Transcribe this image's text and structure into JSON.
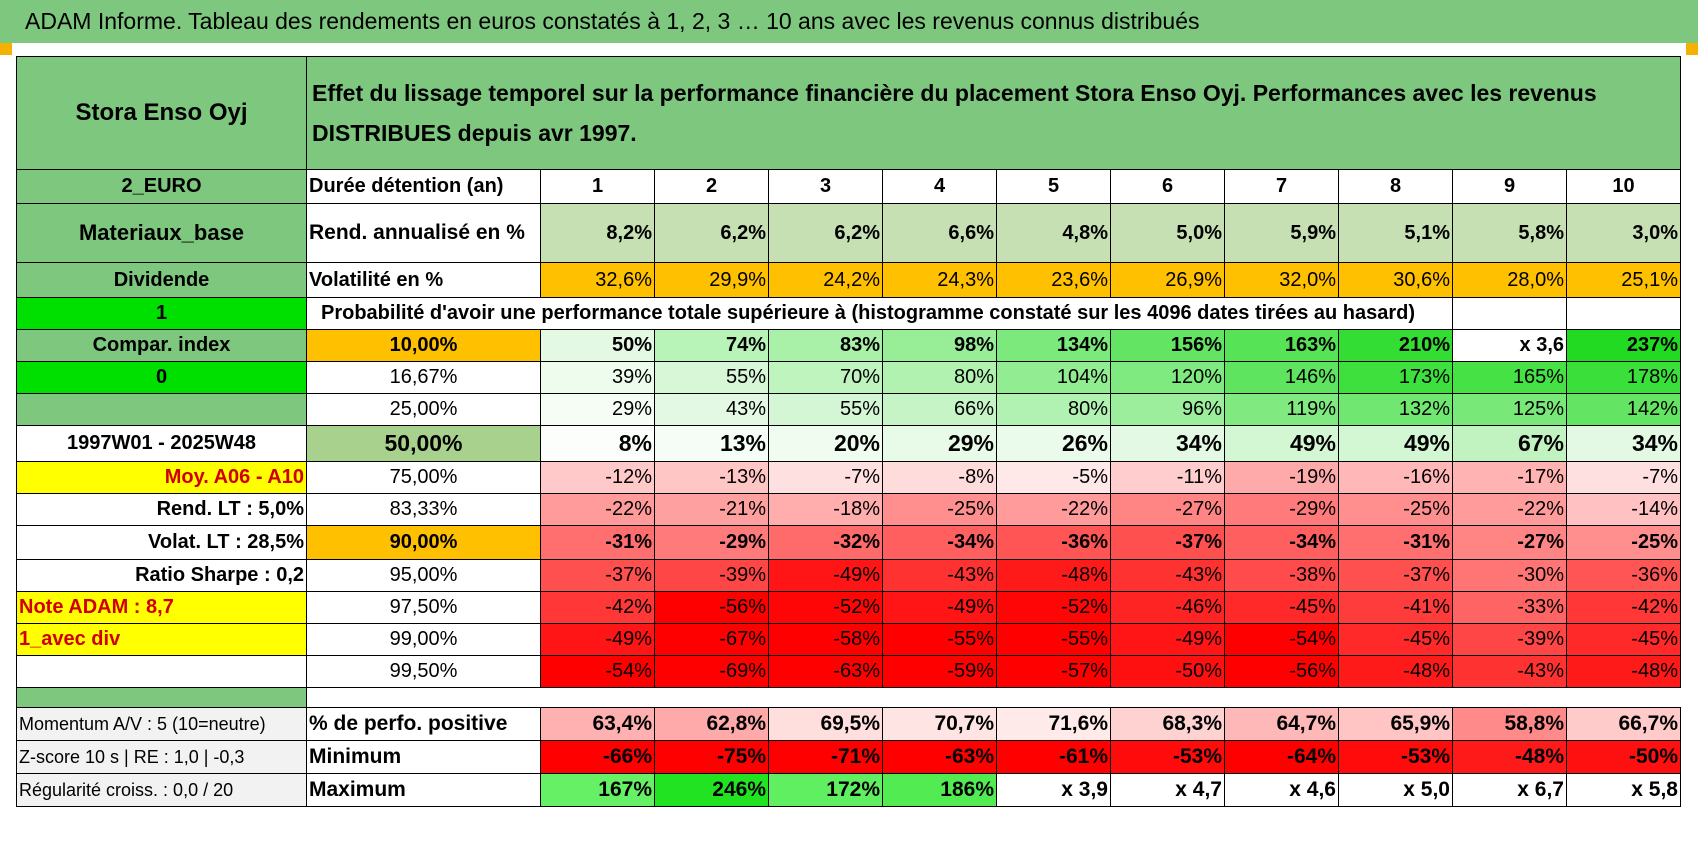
{
  "title": "ADAM Informe. Tableau des rendements en euros constatés à 1, 2, 3 … 10 ans avec les revenus connus distribués",
  "header": {
    "name": "Stora Enso Oyj",
    "description": "Effet du lissage temporel sur la performance financière du placement Stora Enso Oyj. Performances avec les revenus DISTRIBUES depuis avr 1997."
  },
  "left": {
    "currency": "2_EURO",
    "sector": "Materiaux_base",
    "dividend": "Dividende",
    "flag1": "1",
    "compar": "Compar. index",
    "flag0": "0",
    "blank": "",
    "period": "1997W01 - 2025W48",
    "moy": "Moy. A06 - A10",
    "rend_lt": "Rend. LT :    5,0%",
    "volat_lt": "Volat. LT :    28,5%",
    "sharpe": "Ratio Sharpe :     0,2",
    "note": "Note ADAM : 8,7",
    "avec_div": "1_avec div",
    "momentum": "Momentum A/V : 5 (10=neutre)",
    "zscore": "Z-score 10 s | RE : 1,0 | -0,3",
    "regularite": "Régularité croiss. : 0,0 / 20"
  },
  "labels": {
    "duree": "Durée détention (an)",
    "rend": "Rend. annualisé en %",
    "volat": "Volatilité en %",
    "proba": "Probabilité d'avoir une performance totale supérieure à (histogramme constaté sur les 4096 dates tirées au hasard)",
    "perf_pos": "% de perfo. positive",
    "minimum": "Minimum",
    "maximum": "Maximum"
  },
  "years": [
    "1",
    "2",
    "3",
    "4",
    "5",
    "6",
    "7",
    "8",
    "9",
    "10"
  ],
  "rend_values": [
    "8,2%",
    "6,2%",
    "6,2%",
    "6,6%",
    "4,8%",
    "5,0%",
    "5,9%",
    "5,1%",
    "5,8%",
    "3,0%"
  ],
  "volat_values": [
    "32,6%",
    "29,9%",
    "24,2%",
    "24,3%",
    "23,6%",
    "26,9%",
    "32,0%",
    "30,6%",
    "28,0%",
    "25,1%"
  ],
  "prob_rows": [
    {
      "p": "10,00%",
      "bold": true,
      "hl": "#ffc000",
      "v": [
        "50%",
        "74%",
        "83%",
        "98%",
        "134%",
        "156%",
        "163%",
        "210%",
        "x 3,6",
        "237%"
      ],
      "bg": [
        "#e3f9e3",
        "#b8f3b8",
        "#a9f0a9",
        "#97ee97",
        "#7be97b",
        "#63e563",
        "#56e356",
        "#33dd33",
        "#ffffff",
        "#21da21"
      ]
    },
    {
      "p": "16,67%",
      "bold": false,
      "hl": "",
      "v": [
        "39%",
        "55%",
        "70%",
        "80%",
        "104%",
        "120%",
        "146%",
        "173%",
        "165%",
        "178%"
      ],
      "bg": [
        "#eefcee",
        "#d7f7d7",
        "#bff4bf",
        "#b1f2b1",
        "#92ed92",
        "#7fea7f",
        "#5fe45f",
        "#3ee03e",
        "#45e145",
        "#3adf3a"
      ]
    },
    {
      "p": "25,00%",
      "bold": false,
      "hl": "",
      "v": [
        "29%",
        "43%",
        "55%",
        "66%",
        "80%",
        "96%",
        "119%",
        "132%",
        "125%",
        "142%"
      ],
      "bg": [
        "#f5fdf5",
        "#e4f9e4",
        "#d4f6d4",
        "#c6f4c6",
        "#b1f1b1",
        "#9cee9c",
        "#80e980",
        "#70e770",
        "#78e878",
        "#63e463"
      ]
    },
    {
      "p": "50,00%",
      "bold": true,
      "hl": "#a9d18e",
      "big": true,
      "v": [
        "8%",
        "13%",
        "20%",
        "29%",
        "26%",
        "34%",
        "49%",
        "49%",
        "67%",
        "34%"
      ],
      "bg": [
        "#fbfefb",
        "#f6fdf6",
        "#f1fcf1",
        "#e8fae8",
        "#ebfbeb",
        "#e3f9e3",
        "#d3f6d3",
        "#d3f6d3",
        "#c1f3c1",
        "#e3f9e3"
      ]
    },
    {
      "p": "75,00%",
      "bold": false,
      "hl": "",
      "v": [
        "-12%",
        "-13%",
        "-7%",
        "-8%",
        "-5%",
        "-11%",
        "-19%",
        "-16%",
        "-17%",
        "-7%"
      ],
      "bg": [
        "#ffc9c9",
        "#ffc6c6",
        "#ffe0e0",
        "#ffdcdc",
        "#ffe8e8",
        "#ffcdcd",
        "#ffaaaa",
        "#ffb7b7",
        "#ffb3b3",
        "#ffe0e0"
      ]
    },
    {
      "p": "83,33%",
      "bold": false,
      "hl": "",
      "v": [
        "-22%",
        "-21%",
        "-18%",
        "-25%",
        "-22%",
        "-27%",
        "-29%",
        "-25%",
        "-22%",
        "-14%"
      ],
      "bg": [
        "#ff9b9b",
        "#ffa0a0",
        "#ffadad",
        "#ff8e8e",
        "#ff9b9b",
        "#ff8484",
        "#ff7a7a",
        "#ff8e8e",
        "#ff9b9b",
        "#ffc1c1"
      ]
    },
    {
      "p": "90,00%",
      "bold": true,
      "hl": "#ffc000",
      "v": [
        "-31%",
        "-29%",
        "-32%",
        "-34%",
        "-36%",
        "-37%",
        "-34%",
        "-31%",
        "-27%",
        "-25%"
      ],
      "bg": [
        "#ff6f6f",
        "#ff7a7a",
        "#ff6a6a",
        "#ff5f5f",
        "#ff5555",
        "#ff5050",
        "#ff5f5f",
        "#ff6f6f",
        "#ff8484",
        "#ff8e8e"
      ]
    },
    {
      "p": "95,00%",
      "bold": false,
      "hl": "",
      "v": [
        "-37%",
        "-39%",
        "-49%",
        "-43%",
        "-48%",
        "-43%",
        "-38%",
        "-37%",
        "-30%",
        "-36%"
      ],
      "bg": [
        "#ff5050",
        "#ff4646",
        "#ff1515",
        "#ff3232",
        "#ff1a1a",
        "#ff3232",
        "#ff4b4b",
        "#ff5050",
        "#ff7474",
        "#ff5555"
      ]
    },
    {
      "p": "97,50%",
      "bold": false,
      "hl": "",
      "v": [
        "-42%",
        "-56%",
        "-52%",
        "-49%",
        "-52%",
        "-46%",
        "-45%",
        "-41%",
        "-33%",
        "-42%"
      ],
      "bg": [
        "#ff3737",
        "#ff0000",
        "#ff0606",
        "#ff1515",
        "#ff0606",
        "#ff2424",
        "#ff2929",
        "#ff3c3c",
        "#ff6464",
        "#ff3737"
      ]
    },
    {
      "p": "99,00%",
      "bold": false,
      "hl": "",
      "v": [
        "-49%",
        "-67%",
        "-58%",
        "-55%",
        "-55%",
        "-49%",
        "-54%",
        "-45%",
        "-39%",
        "-45%"
      ],
      "bg": [
        "#ff1515",
        "#ff0000",
        "#ff0000",
        "#ff0000",
        "#ff0000",
        "#ff1515",
        "#ff0000",
        "#ff2929",
        "#ff4646",
        "#ff2929"
      ]
    },
    {
      "p": "99,50%",
      "bold": false,
      "hl": "",
      "v": [
        "-54%",
        "-69%",
        "-63%",
        "-59%",
        "-57%",
        "-50%",
        "-56%",
        "-48%",
        "-43%",
        "-48%"
      ],
      "bg": [
        "#ff0000",
        "#ff0000",
        "#ff0000",
        "#ff0000",
        "#ff0000",
        "#ff1010",
        "#ff0000",
        "#ff1a1a",
        "#ff3232",
        "#ff1a1a"
      ]
    }
  ],
  "perf_pos_values": [
    "63,4%",
    "62,8%",
    "69,5%",
    "70,7%",
    "71,6%",
    "68,3%",
    "64,7%",
    "65,9%",
    "58,8%",
    "66,7%"
  ],
  "perf_pos_bg": [
    "#ffb0b0",
    "#ffaaaa",
    "#ffdede",
    "#ffe4e4",
    "#ffeaea",
    "#ffd2d2",
    "#ffb8b8",
    "#ffc4c4",
    "#ff8a8a",
    "#ffcaca"
  ],
  "min_values": [
    "-66%",
    "-75%",
    "-71%",
    "-63%",
    "-61%",
    "-53%",
    "-64%",
    "-53%",
    "-48%",
    "-50%"
  ],
  "min_bg": [
    "#ff0000",
    "#ff0000",
    "#ff0000",
    "#ff0000",
    "#ff0000",
    "#ff0b0b",
    "#ff0000",
    "#ff0b0b",
    "#ff1a1a",
    "#ff1010"
  ],
  "max_values": [
    "167%",
    "246%",
    "172%",
    "186%",
    "x 3,9",
    "x 4,7",
    "x 4,6",
    "x 5,0",
    "x 6,7",
    "x 5,8"
  ],
  "max_bg": [
    "#66f066",
    "#22e322",
    "#60ef60",
    "#52ec52",
    "#ffffff",
    "#ffffff",
    "#ffffff",
    "#ffffff",
    "#ffffff",
    "#ffffff"
  ],
  "colors": {
    "header_green": "#7ec77e",
    "rend_green": "#c6e0b4",
    "volat_orange": "#ffc000",
    "bright_green": "#00e000",
    "yellow": "#ffff00",
    "red_text": "#d00000"
  }
}
